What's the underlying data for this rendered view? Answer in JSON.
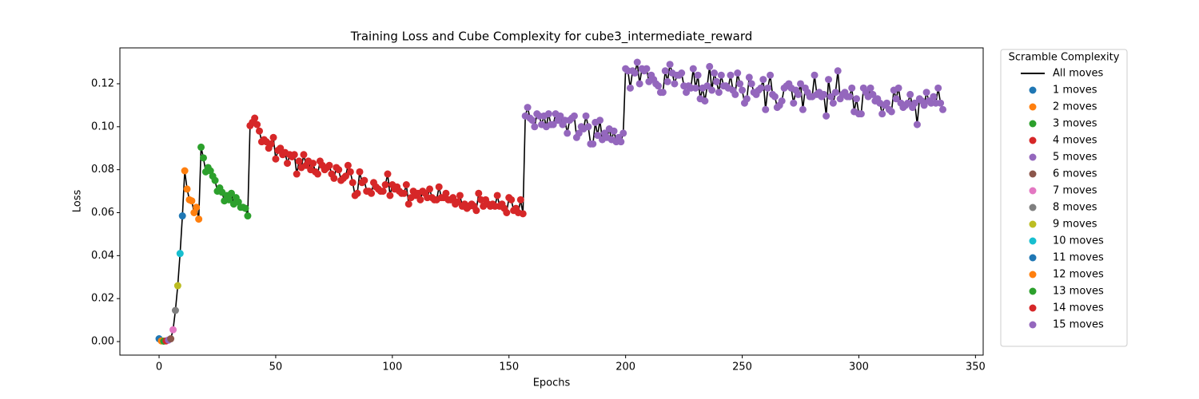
{
  "chart_data": {
    "type": "line",
    "title": "Training Loss and Cube Complexity for cube3_intermediate_reward",
    "x_label": "Epochs",
    "y_label": "Loss",
    "legend_title": "Scramble Complexity",
    "legend_position": "outside right",
    "xlim": [
      -16.8,
      353.3
    ],
    "ylim": [
      -0.0063,
      0.1367
    ],
    "xticks": [
      0,
      50,
      100,
      150,
      200,
      250,
      300,
      350
    ],
    "yticks": [
      {
        "value": 0,
        "label": "0.00"
      },
      {
        "value": 0.02,
        "label": "0.02"
      },
      {
        "value": 0.04,
        "label": "0.04"
      },
      {
        "value": 0.06,
        "label": "0.06"
      },
      {
        "value": 0.08,
        "label": "0.08"
      },
      {
        "value": 0.1,
        "label": "0.10"
      },
      {
        "value": 0.12,
        "label": "0.12"
      }
    ],
    "series": [
      {
        "name": "All moves",
        "color": "#000000",
        "kind": "line"
      },
      {
        "name": "1 moves",
        "color": "#1f77b4",
        "kind": "points",
        "x": [
          0
        ],
        "values": [
          0.0013
        ]
      },
      {
        "name": "2 moves",
        "color": "#ff7f0e",
        "kind": "points",
        "x": [
          1
        ],
        "values": [
          0.0003
        ]
      },
      {
        "name": "3 moves",
        "color": "#2ca02c",
        "kind": "points",
        "x": [
          2
        ],
        "values": [
          0.0002
        ]
      },
      {
        "name": "4 moves",
        "color": "#d62728",
        "kind": "points",
        "x": [
          3
        ],
        "values": [
          0.0003
        ]
      },
      {
        "name": "5 moves",
        "color": "#9467bd",
        "kind": "points",
        "x": [
          4
        ],
        "values": [
          0.0007
        ]
      },
      {
        "name": "6 moves",
        "color": "#8c564b",
        "kind": "points",
        "x": [
          5
        ],
        "values": [
          0.0013
        ]
      },
      {
        "name": "7 moves",
        "color": "#e377c2",
        "kind": "points",
        "x": [
          6
        ],
        "values": [
          0.0055
        ]
      },
      {
        "name": "8 moves",
        "color": "#7f7f7f",
        "kind": "points",
        "x": [
          7
        ],
        "values": [
          0.0145
        ]
      },
      {
        "name": "9 moves",
        "color": "#bcbd22",
        "kind": "points",
        "x": [
          8
        ],
        "values": [
          0.026
        ]
      },
      {
        "name": "10 moves",
        "color": "#17becf",
        "kind": "points",
        "x": [
          9
        ],
        "values": [
          0.041
        ]
      },
      {
        "name": "11 moves",
        "color": "#1f77b4",
        "kind": "points",
        "x": [
          10
        ],
        "values": [
          0.0585
        ]
      },
      {
        "name": "12 moves",
        "color": "#ff7f0e",
        "kind": "points",
        "x": [
          11,
          12,
          13,
          14,
          15,
          16,
          17
        ],
        "values": [
          0.0795,
          0.071,
          0.066,
          0.0655,
          0.06,
          0.0625,
          0.057
        ]
      },
      {
        "name": "13 moves",
        "color": "#2ca02c",
        "kind": "points",
        "x": [
          18,
          19,
          20,
          21,
          22,
          23,
          24,
          25,
          26,
          27,
          28,
          29,
          30,
          31,
          32,
          33,
          34,
          35,
          36,
          37,
          38
        ],
        "values": [
          0.0905,
          0.0855,
          0.079,
          0.081,
          0.0795,
          0.077,
          0.075,
          0.07,
          0.0715,
          0.0695,
          0.0655,
          0.068,
          0.066,
          0.069,
          0.064,
          0.067,
          0.065,
          0.0625,
          0.0625,
          0.062,
          0.0585
        ]
      },
      {
        "name": "14 moves",
        "color": "#d62728",
        "kind": "points",
        "x": [
          39,
          40,
          41,
          42,
          43,
          44,
          45,
          46,
          47,
          48,
          49,
          50,
          51,
          52,
          53,
          54,
          55,
          56,
          57,
          58,
          59,
          60,
          61,
          62,
          63,
          64,
          65,
          66,
          67,
          68,
          69,
          70,
          71,
          72,
          73,
          74,
          75,
          76,
          77,
          78,
          79,
          80,
          81,
          82,
          83,
          84,
          85,
          86,
          87,
          88,
          89,
          90,
          91,
          92,
          93,
          94,
          95,
          96,
          97,
          98,
          99,
          100,
          101,
          102,
          103,
          104,
          105,
          106,
          107,
          108,
          109,
          110,
          111,
          112,
          113,
          114,
          115,
          116,
          117,
          118,
          119,
          120,
          121,
          122,
          123,
          124,
          125,
          126,
          127,
          128,
          129,
          130,
          131,
          132,
          133,
          134,
          135,
          136,
          137,
          138,
          139,
          140,
          141,
          142,
          143,
          144,
          145,
          146,
          147,
          148,
          149,
          150,
          151,
          152,
          153,
          154,
          155,
          156
        ],
        "values": [
          0.1005,
          0.102,
          0.104,
          0.101,
          0.098,
          0.093,
          0.094,
          0.093,
          0.09,
          0.092,
          0.095,
          0.085,
          0.089,
          0.09,
          0.087,
          0.088,
          0.083,
          0.087,
          0.086,
          0.087,
          0.078,
          0.084,
          0.081,
          0.087,
          0.082,
          0.084,
          0.08,
          0.083,
          0.079,
          0.078,
          0.084,
          0.082,
          0.08,
          0.081,
          0.082,
          0.078,
          0.076,
          0.081,
          0.08,
          0.075,
          0.076,
          0.077,
          0.082,
          0.079,
          0.074,
          0.068,
          0.069,
          0.079,
          0.074,
          0.075,
          0.07,
          0.07,
          0.069,
          0.074,
          0.072,
          0.071,
          0.07,
          0.07,
          0.073,
          0.078,
          0.068,
          0.073,
          0.071,
          0.072,
          0.07,
          0.069,
          0.069,
          0.073,
          0.064,
          0.067,
          0.07,
          0.068,
          0.069,
          0.066,
          0.07,
          0.069,
          0.067,
          0.071,
          0.067,
          0.066,
          0.066,
          0.072,
          0.067,
          0.067,
          0.069,
          0.066,
          0.066,
          0.067,
          0.064,
          0.065,
          0.068,
          0.063,
          0.064,
          0.062,
          0.063,
          0.064,
          0.063,
          0.061,
          0.069,
          0.066,
          0.063,
          0.066,
          0.064,
          0.063,
          0.064,
          0.063,
          0.068,
          0.063,
          0.064,
          0.062,
          0.06,
          0.067,
          0.066,
          0.061,
          0.062,
          0.06,
          0.066,
          0.0595
        ]
      },
      {
        "name": "15 moves",
        "color": "#9467bd",
        "kind": "points",
        "x": [
          157,
          158,
          159,
          160,
          161,
          162,
          163,
          164,
          165,
          166,
          167,
          168,
          169,
          170,
          171,
          172,
          173,
          174,
          175,
          176,
          177,
          178,
          179,
          180,
          181,
          182,
          183,
          184,
          185,
          186,
          187,
          188,
          189,
          190,
          191,
          192,
          193,
          194,
          195,
          196,
          197,
          198,
          199,
          200,
          201,
          202,
          203,
          204,
          205,
          206,
          207,
          208,
          209,
          210,
          211,
          212,
          213,
          214,
          215,
          216,
          217,
          218,
          219,
          220,
          221,
          222,
          223,
          224,
          225,
          226,
          227,
          228,
          229,
          230,
          231,
          232,
          233,
          234,
          235,
          236,
          237,
          238,
          239,
          240,
          241,
          242,
          243,
          244,
          245,
          246,
          247,
          248,
          249,
          250,
          251,
          252,
          253,
          254,
          255,
          256,
          257,
          258,
          259,
          260,
          261,
          262,
          263,
          264,
          265,
          266,
          267,
          268,
          269,
          270,
          271,
          272,
          273,
          274,
          275,
          276,
          277,
          278,
          279,
          280,
          281,
          282,
          283,
          284,
          285,
          286,
          287,
          288,
          289,
          290,
          291,
          292,
          293,
          294,
          295,
          296,
          297,
          298,
          299,
          300,
          301,
          302,
          303,
          304,
          305,
          306,
          307,
          308,
          309,
          310,
          311,
          312,
          313,
          314,
          315,
          316,
          317,
          318,
          319,
          320,
          321,
          322,
          323,
          324,
          325,
          326,
          327,
          328,
          329,
          330,
          331,
          332,
          333,
          334,
          335,
          336
        ],
        "values": [
          0.105,
          0.109,
          0.104,
          0.103,
          0.1,
          0.106,
          0.105,
          0.101,
          0.105,
          0.1,
          0.106,
          0.101,
          0.101,
          0.106,
          0.103,
          0.105,
          0.101,
          0.103,
          0.097,
          0.103,
          0.104,
          0.105,
          0.095,
          0.097,
          0.1,
          0.099,
          0.105,
          0.1,
          0.092,
          0.092,
          0.102,
          0.096,
          0.103,
          0.094,
          0.097,
          0.095,
          0.099,
          0.094,
          0.098,
          0.093,
          0.095,
          0.093,
          0.097,
          0.127,
          0.126,
          0.118,
          0.126,
          0.125,
          0.13,
          0.12,
          0.127,
          0.126,
          0.127,
          0.121,
          0.124,
          0.122,
          0.12,
          0.119,
          0.116,
          0.116,
          0.126,
          0.121,
          0.129,
          0.125,
          0.12,
          0.124,
          0.124,
          0.125,
          0.119,
          0.116,
          0.119,
          0.118,
          0.127,
          0.118,
          0.124,
          0.113,
          0.118,
          0.112,
          0.119,
          0.128,
          0.117,
          0.125,
          0.121,
          0.116,
          0.124,
          0.119,
          0.119,
          0.118,
          0.124,
          0.117,
          0.115,
          0.125,
          0.12,
          0.117,
          0.111,
          0.113,
          0.123,
          0.12,
          0.116,
          0.115,
          0.117,
          0.118,
          0.122,
          0.108,
          0.118,
          0.124,
          0.115,
          0.114,
          0.109,
          0.11,
          0.112,
          0.118,
          0.119,
          0.12,
          0.118,
          0.111,
          0.117,
          0.115,
          0.12,
          0.108,
          0.118,
          0.116,
          0.114,
          0.114,
          0.124,
          0.115,
          0.116,
          0.114,
          0.115,
          0.105,
          0.122,
          0.114,
          0.111,
          0.116,
          0.126,
          0.113,
          0.115,
          0.116,
          0.114,
          0.114,
          0.118,
          0.107,
          0.113,
          0.106,
          0.106,
          0.118,
          0.116,
          0.114,
          0.118,
          0.115,
          0.112,
          0.113,
          0.111,
          0.106,
          0.11,
          0.111,
          0.108,
          0.107,
          0.117,
          0.113,
          0.118,
          0.111,
          0.109,
          0.11,
          0.111,
          0.115,
          0.109,
          0.111,
          0.101,
          0.113,
          0.112,
          0.11,
          0.116,
          0.112,
          0.111,
          0.114,
          0.111,
          0.118,
          0.111,
          0.108
        ]
      }
    ]
  }
}
